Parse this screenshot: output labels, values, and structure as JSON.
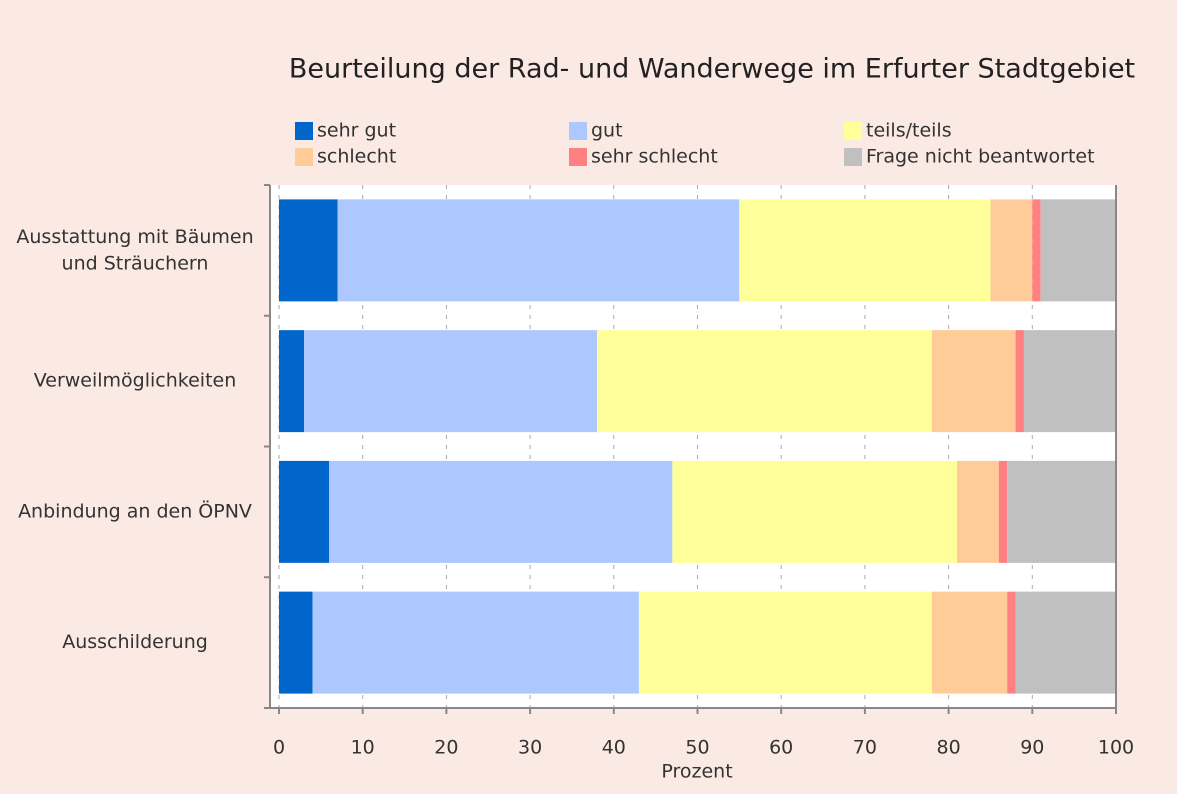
{
  "chart_data": {
    "type": "stacked_bar_horizontal",
    "title": "Beurteilung der Rad- und Wanderwege im Erfurter Stadtgebiet",
    "xlabel": "Prozent",
    "categories": [
      "Ausstattung mit Bäumen\nund Sträuchern",
      "Verweilmöglichkeiten",
      "Anbindung an den ÖPNV",
      "Ausschilderung"
    ],
    "series": [
      {
        "name": "sehr gut",
        "color": "#0066cc",
        "values": [
          7,
          3,
          6,
          4
        ]
      },
      {
        "name": "gut",
        "color": "#adc8ff",
        "values": [
          48,
          35,
          41,
          39
        ]
      },
      {
        "name": "teils/teils",
        "color": "#ffff99",
        "values": [
          30,
          40,
          34,
          35
        ]
      },
      {
        "name": "schlecht",
        "color": "#ffcc99",
        "values": [
          5,
          10,
          5,
          9
        ]
      },
      {
        "name": "sehr schlecht",
        "color": "#ff8080",
        "values": [
          1,
          1,
          1,
          1
        ]
      },
      {
        "name": "Frage nicht beantwortet",
        "color": "#c0c0c0",
        "values": [
          9,
          11,
          13,
          12
        ]
      }
    ],
    "xlim": [
      0,
      100
    ],
    "xticks": [
      0,
      10,
      20,
      30,
      40,
      50,
      60,
      70,
      80,
      90,
      100
    ],
    "grid": true
  }
}
